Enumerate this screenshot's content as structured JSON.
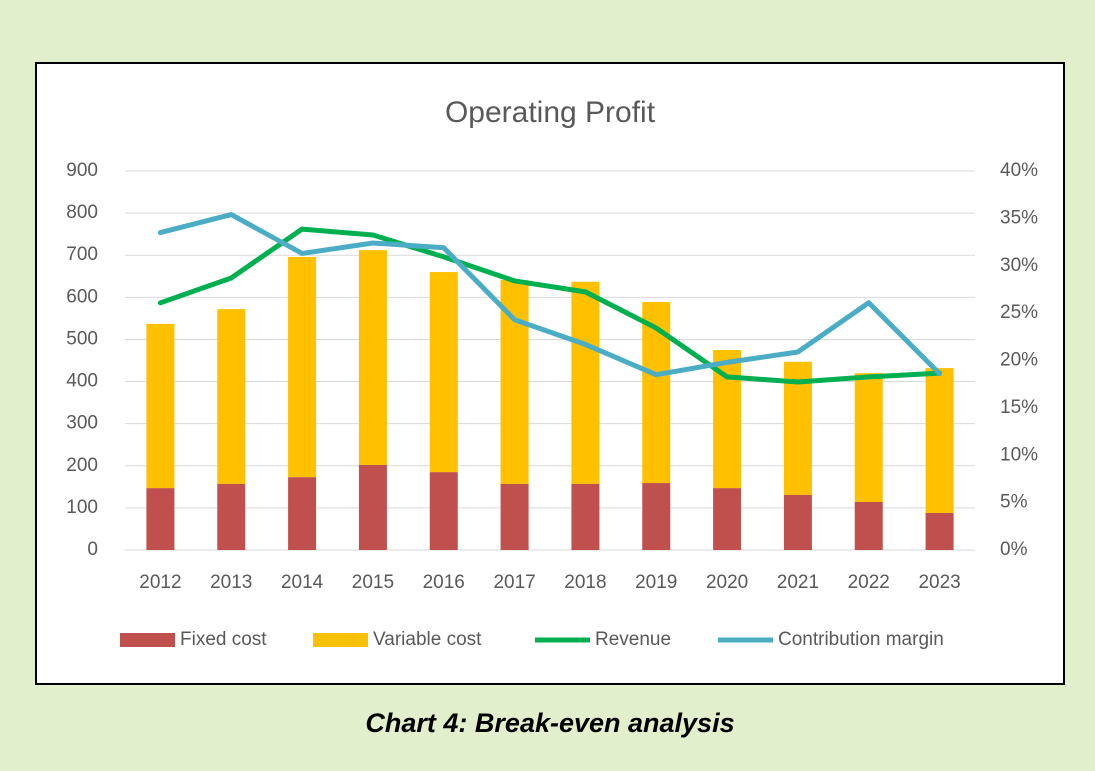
{
  "chart_data": {
    "type": "combo",
    "title": "Operating Profit",
    "caption": "Chart 4: Break-even analysis",
    "categories": [
      "2012",
      "2013",
      "2014",
      "2015",
      "2016",
      "2017",
      "2018",
      "2019",
      "2020",
      "2021",
      "2022",
      "2023"
    ],
    "stacked": true,
    "grid": true,
    "legend": "bottom",
    "ylim": [
      0,
      900
    ],
    "yticks": [
      0,
      100,
      200,
      300,
      400,
      500,
      600,
      700,
      800,
      900
    ],
    "y2lim": [
      0,
      40
    ],
    "y2ticks": [
      {
        "value": 0,
        "label": "0%"
      },
      {
        "value": 5,
        "label": "5%"
      },
      {
        "value": 10,
        "label": "10%"
      },
      {
        "value": 15,
        "label": "15%"
      },
      {
        "value": 20,
        "label": "20%"
      },
      {
        "value": 25,
        "label": "25%"
      },
      {
        "value": 30,
        "label": "30%"
      },
      {
        "value": 35,
        "label": "35%"
      },
      {
        "value": 40,
        "label": "40%"
      }
    ],
    "series": [
      {
        "name": "Fixed cost",
        "type": "bar",
        "color": "#c0504d",
        "values": [
          147,
          157,
          173,
          202,
          185,
          157,
          157,
          159,
          147,
          131,
          114,
          88
        ]
      },
      {
        "name": "Variable cost",
        "type": "bar",
        "color": "#ffc000",
        "values": [
          390,
          415,
          523,
          510,
          475,
          484,
          480,
          430,
          328,
          316,
          306,
          344
        ]
      },
      {
        "name": "Revenue",
        "type": "line",
        "color": "#00b050",
        "values": [
          587,
          646,
          762,
          748,
          696,
          639,
          613,
          527,
          411,
          399,
          411,
          420
        ]
      },
      {
        "name": "Contribution margin",
        "type": "line",
        "axis": "y2",
        "color": "#4bacc6",
        "values": [
          33.5,
          35.4,
          31.3,
          32.4,
          31.9,
          24.3,
          21.7,
          18.5,
          19.8,
          20.9,
          26.1,
          18.6
        ]
      }
    ]
  }
}
